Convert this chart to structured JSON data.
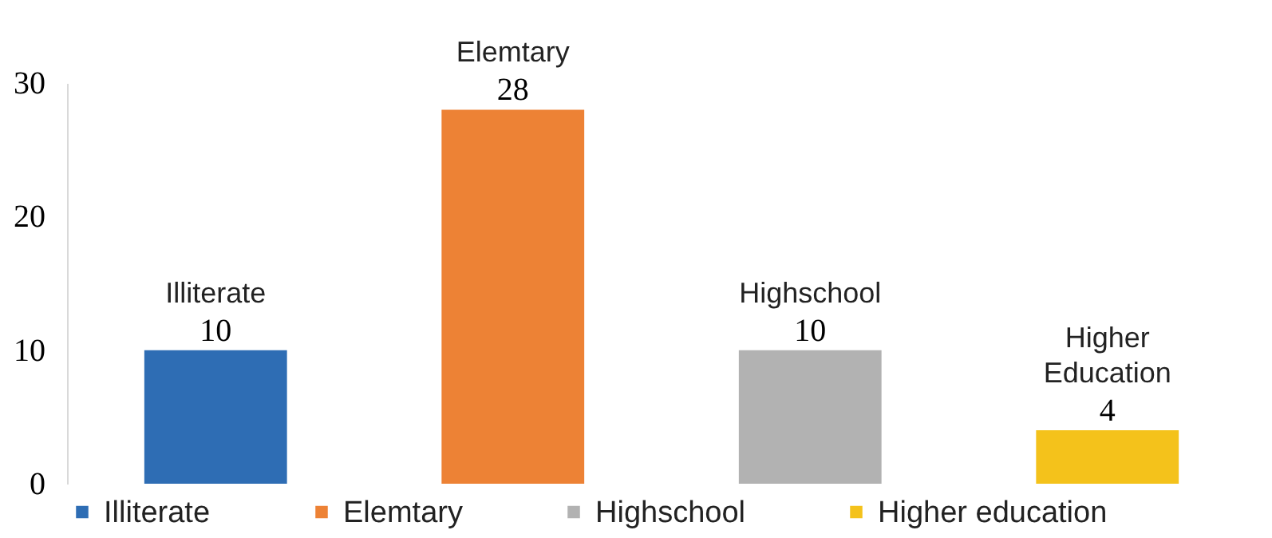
{
  "chart_data": {
    "type": "bar",
    "categories": [
      "Illiterate",
      "Elemtary",
      "Highschool",
      "Higher Education"
    ],
    "series": [
      {
        "name": "Illiterate",
        "color": "#2e6db4",
        "values": [
          10,
          null,
          null,
          null
        ]
      },
      {
        "name": "Elemtary",
        "color": "#ed8235",
        "values": [
          null,
          28,
          null,
          null
        ]
      },
      {
        "name": "Highschool",
        "color": "#b2b2b2",
        "values": [
          null,
          null,
          10,
          null
        ]
      },
      {
        "name": "Higher education",
        "color": "#f4c21b",
        "values": [
          null,
          null,
          null,
          4
        ]
      }
    ],
    "ylim": [
      0,
      30
    ],
    "yticks": [
      0,
      10,
      20,
      30
    ],
    "grid": false,
    "legend": "bottom",
    "data_labels": true
  }
}
